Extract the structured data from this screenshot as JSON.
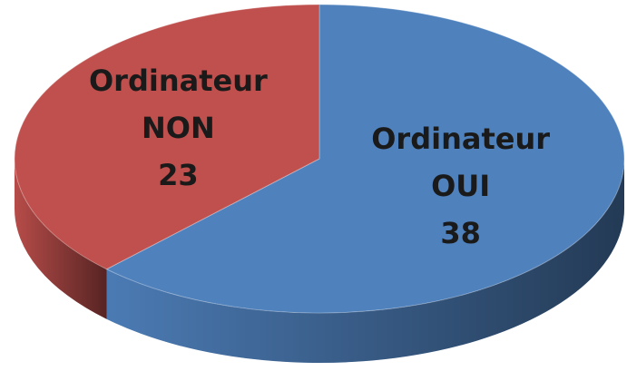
{
  "chart_data": {
    "type": "pie",
    "categories": [
      "Ordinateur OUI",
      "Ordinateur NON"
    ],
    "values": [
      38,
      23
    ],
    "colors": [
      "#4f81bd",
      "#c0504d"
    ]
  }
}
